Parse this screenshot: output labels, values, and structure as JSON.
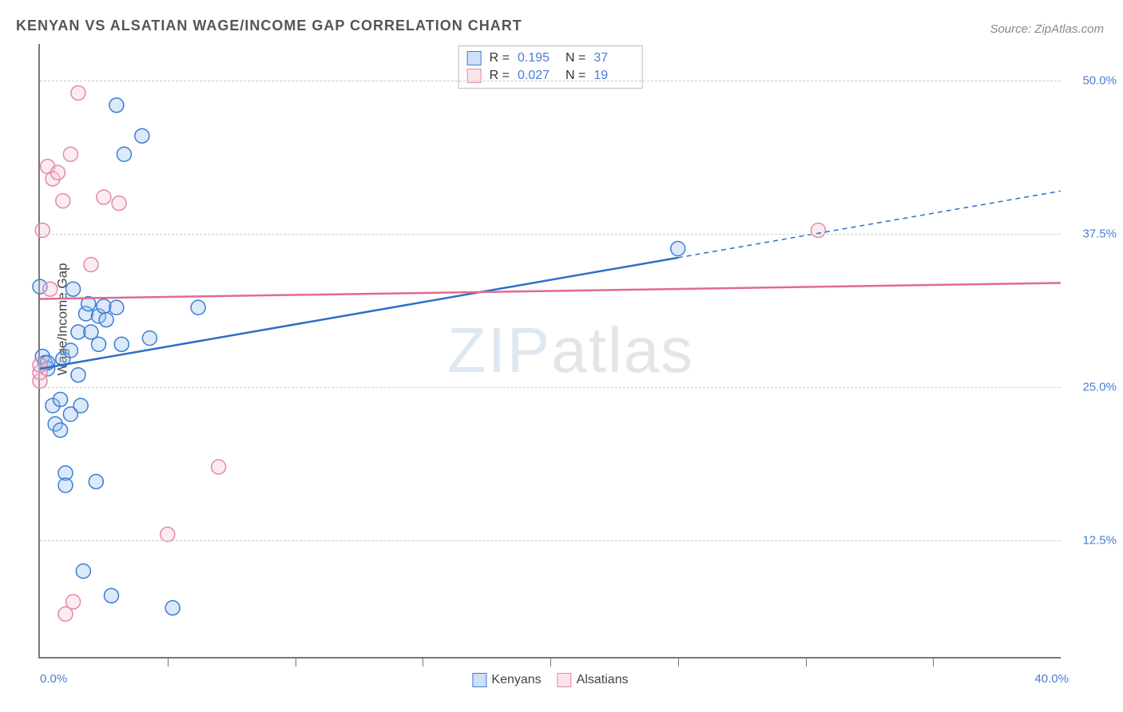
{
  "title": "KENYAN VS ALSATIAN WAGE/INCOME GAP CORRELATION CHART",
  "source": "Source: ZipAtlas.com",
  "y_axis_label": "Wage/Income Gap",
  "watermark_a": "ZIP",
  "watermark_b": "atlas",
  "chart": {
    "type": "scatter",
    "background_color": "#ffffff",
    "grid_color": "#cccccc",
    "grid_dash": "4,4",
    "axis_color": "#777777",
    "tick_label_color": "#4a7dd4",
    "tick_label_fontsize": 15,
    "title_fontsize": 18,
    "x_domain": [
      0,
      40
    ],
    "y_domain": [
      3,
      53
    ],
    "y_gridlines": [
      12.5,
      25.0,
      37.5,
      50.0
    ],
    "y_tick_labels": [
      "12.5%",
      "25.0%",
      "37.5%",
      "50.0%"
    ],
    "x_tick_left": "0.0%",
    "x_tick_right": "40.0%",
    "x_minor_ticks": [
      5,
      10,
      15,
      20,
      25,
      30,
      35
    ],
    "marker_radius": 9,
    "marker_fill_opacity": 0.35,
    "marker_stroke_width": 1.5,
    "trend_line_width": 2.5,
    "series": [
      {
        "name": "Kenyans",
        "stroke": "#3b7dd8",
        "fill": "#9cc1ec",
        "trend_line_color": "#2d6fc9",
        "trend_dash": {
          "x_solid_end": 25
        },
        "R": "0.195",
        "N": "37",
        "trend": {
          "x0": 0,
          "y0": 26.5,
          "x1": 40,
          "y1": 41.0
        },
        "points": [
          [
            0.0,
            33.2
          ],
          [
            0.1,
            27.5
          ],
          [
            0.2,
            27.0
          ],
          [
            0.3,
            26.5
          ],
          [
            0.3,
            27.0
          ],
          [
            0.5,
            23.5
          ],
          [
            0.6,
            22.0
          ],
          [
            0.8,
            21.5
          ],
          [
            0.8,
            24.0
          ],
          [
            0.9,
            27.3
          ],
          [
            1.0,
            18.0
          ],
          [
            1.0,
            17.0
          ],
          [
            1.2,
            28.0
          ],
          [
            1.2,
            22.8
          ],
          [
            1.3,
            33.0
          ],
          [
            1.5,
            26.0
          ],
          [
            1.5,
            29.5
          ],
          [
            1.6,
            23.5
          ],
          [
            1.7,
            10.0
          ],
          [
            1.8,
            31.0
          ],
          [
            1.9,
            31.8
          ],
          [
            2.0,
            29.5
          ],
          [
            2.2,
            17.3
          ],
          [
            2.3,
            28.5
          ],
          [
            2.3,
            30.8
          ],
          [
            2.5,
            31.6
          ],
          [
            2.6,
            30.5
          ],
          [
            2.8,
            8.0
          ],
          [
            3.0,
            48.0
          ],
          [
            3.0,
            31.5
          ],
          [
            3.2,
            28.5
          ],
          [
            3.3,
            44.0
          ],
          [
            4.0,
            45.5
          ],
          [
            4.3,
            29.0
          ],
          [
            5.2,
            7.0
          ],
          [
            6.2,
            31.5
          ],
          [
            25.0,
            36.3
          ]
        ]
      },
      {
        "name": "Alsatians",
        "stroke": "#e38aa5",
        "fill": "#f5c7d3",
        "trend_line_color": "#e06c8e",
        "trend_dash": null,
        "R": "0.027",
        "N": "19",
        "trend": {
          "x0": 0,
          "y0": 32.2,
          "x1": 40,
          "y1": 33.5
        },
        "points": [
          [
            0.0,
            25.5
          ],
          [
            0.0,
            26.2
          ],
          [
            0.0,
            26.8
          ],
          [
            0.1,
            37.8
          ],
          [
            0.3,
            43.0
          ],
          [
            0.4,
            33.0
          ],
          [
            0.5,
            42.0
          ],
          [
            0.7,
            42.5
          ],
          [
            0.9,
            40.2
          ],
          [
            1.0,
            6.5
          ],
          [
            1.2,
            44.0
          ],
          [
            1.3,
            7.5
          ],
          [
            1.5,
            49.0
          ],
          [
            2.0,
            35.0
          ],
          [
            2.5,
            40.5
          ],
          [
            3.1,
            40.0
          ],
          [
            5.0,
            13.0
          ],
          [
            7.0,
            18.5
          ],
          [
            30.5,
            37.8
          ]
        ]
      }
    ]
  },
  "series_legend": [
    {
      "label": "Kenyans",
      "stroke": "#3b7dd8",
      "fill": "#9cc1ec"
    },
    {
      "label": "Alsatians",
      "stroke": "#e38aa5",
      "fill": "#f5c7d3"
    }
  ]
}
